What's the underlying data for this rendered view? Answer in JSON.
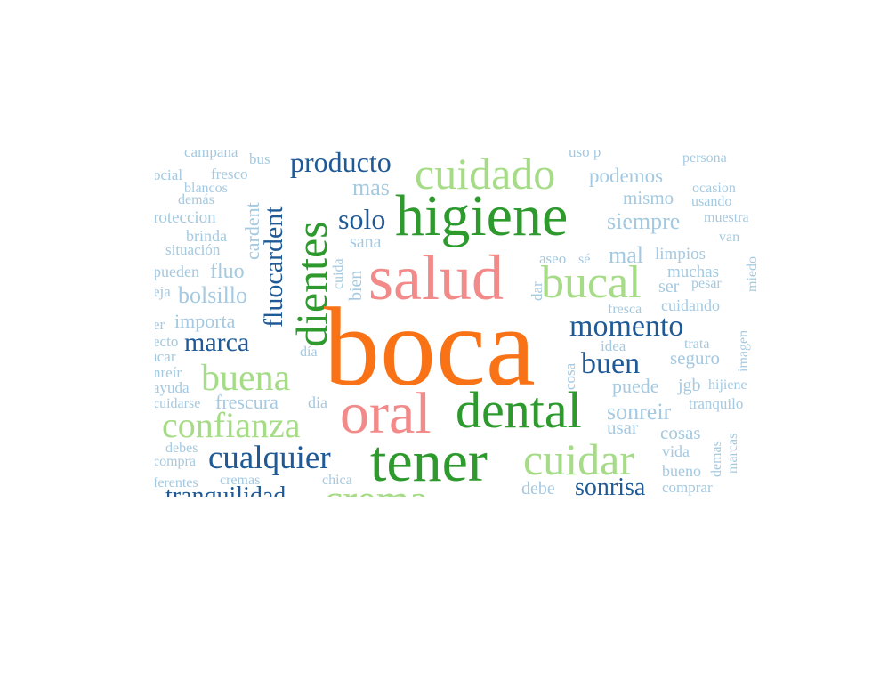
{
  "colors": {
    "orange": "#f97316",
    "salmon": "#f28a8a",
    "dark_green": "#2e9a2e",
    "light_green": "#a6dc87",
    "navy": "#1f5a96",
    "light_blue": "#a4c9e0"
  },
  "words": {
    "boca": "boca",
    "salud": "salud",
    "oral": "oral",
    "higiene": "higiene",
    "tener": "tener",
    "dental": "dental",
    "dientes": "dientes",
    "cuidado": "cuidado",
    "bucal": "bucal",
    "cuidar": "cuidar",
    "confianza": "confianza",
    "buena": "buena",
    "cualquier": "cualquier",
    "producto": "producto",
    "momento": "momento",
    "fluocardent": "fluocardent",
    "marca": "marca",
    "buen": "buen",
    "solo": "solo",
    "sonrisa": "sonrisa",
    "tranquilidad": "tranquilidad",
    "crema": "crema",
    "podemos": "podemos",
    "siempre": "siempre",
    "mas": "mas",
    "bolsillo": "bolsillo",
    "frescura": "frescura",
    "importa": "importa",
    "fluo": "fluo",
    "cardent": "cardent",
    "mal": "mal",
    "sonreir": "sonreir",
    "puede": "puede",
    "seguro": "seguro",
    "usar": "usar",
    "cosas": "cosas",
    "limpios": "limpios",
    "muchas": "muchas",
    "mismo": "mismo",
    "sana": "sana",
    "bien": "bien",
    "cuida": "cuida",
    "aseo": "aseo",
    "se": "sé",
    "dar": "dar",
    "fresca": "fresca",
    "cuidando": "cuidando",
    "ser": "ser",
    "pesar": "pesar",
    "idea": "idea",
    "trata": "trata",
    "imagen": "imagen",
    "cosa": "cosa",
    "jgb": "jgb",
    "hijiene": "hijiene",
    "tranquilo": "tranquilo",
    "vida": "vida",
    "bueno": "bueno",
    "demas": "demas",
    "demas2": "demás",
    "marcas": "marcas",
    "comprar": "comprar",
    "debe": "debe",
    "chica": "chica",
    "cremas": "cremas",
    "dia": "dia",
    "dia2": "día",
    "debes": "debes",
    "compra": "compra",
    "diferentes": "ferentes",
    "cuidarse": "cuidarse",
    "ayuda": "ayuda",
    "sonreir2": "nreír",
    "buscar": "ıcar",
    "efecto": "ecto",
    "ver": "er",
    "deja": "eja",
    "pueden": "pueden",
    "situacion": "situación",
    "brinda": "brinda",
    "proteccion": "roteccion",
    "blancos": "blancos",
    "social": "ocial",
    "fresco": "fresco",
    "campana": "campaña",
    "bus": "bus",
    "persona": "persona",
    "ocasion": "ocasion",
    "usando": "usando",
    "muestra": "muestra",
    "van": "van",
    "miedo": "miedo",
    "uso": "uso p"
  }
}
